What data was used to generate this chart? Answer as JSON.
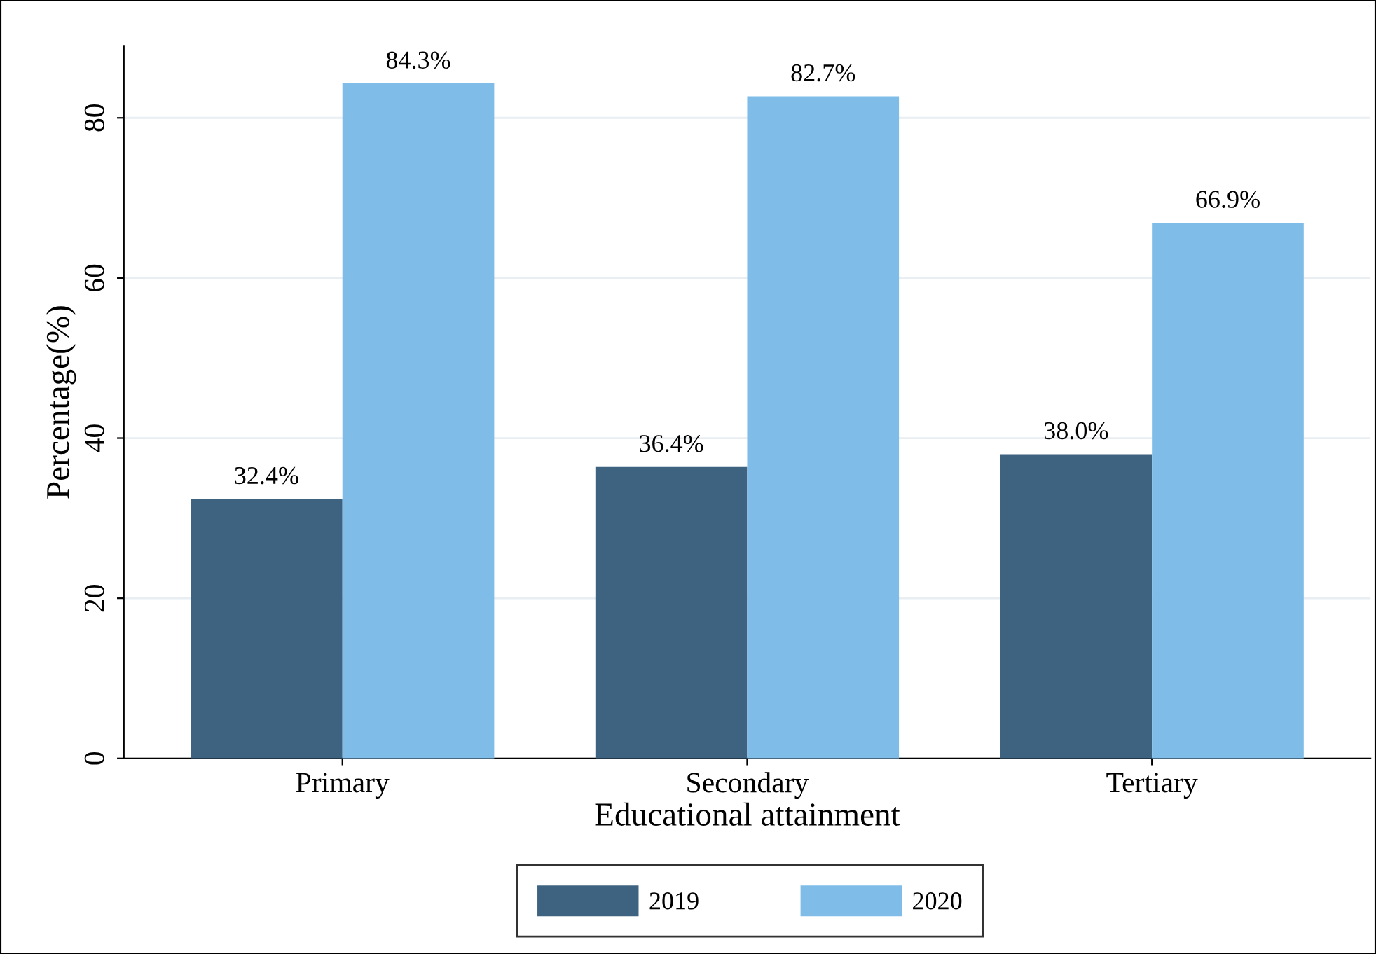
{
  "chart_data": {
    "type": "bar",
    "xlabel": "Educational attainment",
    "ylabel": "Percentage(%)",
    "categories": [
      "Primary",
      "Secondary",
      "Tertiary"
    ],
    "series": [
      {
        "name": "2019",
        "color": "#3e6380",
        "values": [
          32.4,
          36.4,
          38.0
        ],
        "value_labels": [
          "32.4%",
          "36.4%",
          "38.0%"
        ]
      },
      {
        "name": "2020",
        "color": "#7fbde8",
        "values": [
          84.3,
          82.7,
          66.9
        ],
        "value_labels": [
          "84.3%",
          "82.7%",
          "66.9%"
        ]
      }
    ],
    "ylim": [
      0,
      89
    ],
    "yticks": [
      0,
      20,
      40,
      60,
      80
    ],
    "grid": "y",
    "legend": "bottom"
  }
}
